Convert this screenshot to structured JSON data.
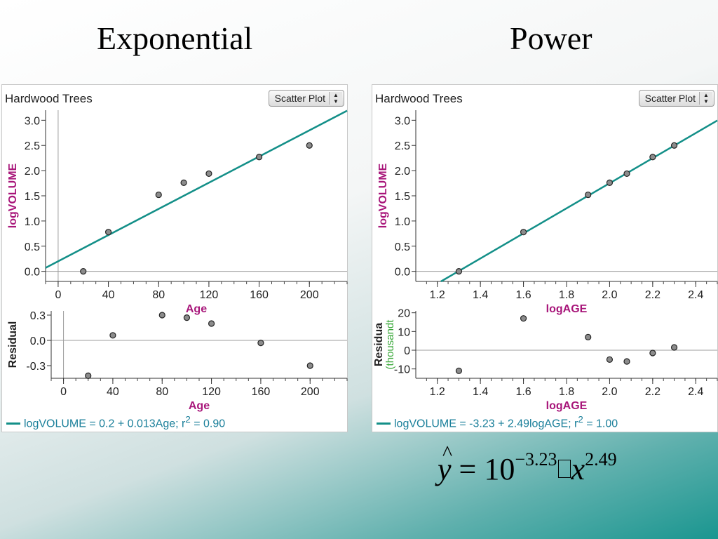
{
  "slide": {
    "title_left": "Exponential",
    "title_right": "Power"
  },
  "panels": [
    {
      "title": "Hardwood Trees",
      "plot_type": "Scatter Plot",
      "legend": {
        "prefix": "logVOLUME = 0.2 + 0.013Age; r",
        "sup": "2",
        "suffix": " = 0.90"
      },
      "main": {
        "xlim": [
          -10,
          230
        ],
        "ylim": [
          -0.2,
          3.2
        ],
        "xticks": [
          0,
          40,
          80,
          120,
          160,
          200
        ],
        "yticks": [
          "0.0",
          "0.5",
          "1.0",
          "1.5",
          "2.0",
          "2.5",
          "3.0"
        ]
      },
      "residual": {
        "xlim": [
          -10,
          230
        ],
        "ylim": [
          -0.45,
          0.35
        ],
        "xticks": [
          0,
          40,
          80,
          120,
          160,
          200
        ],
        "yticks": [
          "0.3",
          "0.0",
          "-0.3"
        ]
      }
    },
    {
      "title": "Hardwood Trees",
      "plot_type": "Scatter Plot",
      "legend": {
        "prefix": "logVOLUME = -3.23 + 2.49logAGE; r",
        "sup": "2",
        "suffix": " = 1.00"
      },
      "main": {
        "xlim": [
          1.1,
          2.5
        ],
        "ylim": [
          -0.2,
          3.2
        ],
        "xticks": [
          "1.2",
          "1.4",
          "1.6",
          "1.8",
          "2.0",
          "2.2",
          "2.4"
        ],
        "yticks": [
          "0.0",
          "0.5",
          "1.0",
          "1.5",
          "2.0",
          "2.5",
          "3.0"
        ]
      },
      "residual": {
        "xlim": [
          1.1,
          2.5
        ],
        "ylim": [
          -15,
          21
        ],
        "xticks": [
          "1.2",
          "1.4",
          "1.6",
          "1.8",
          "2.0",
          "2.2",
          "2.4"
        ],
        "yticks": [
          "20",
          "10",
          "0",
          "-10"
        ]
      }
    }
  ],
  "formula": {
    "lhs": "y",
    "hat": "^",
    "equals": "=",
    "base": "10",
    "exponent": "−3.23",
    "var": "x",
    "var_exp": "2.49"
  },
  "colors": {
    "points": "#8c8c8c",
    "line": "#138f88",
    "axis_label": "#a8167a",
    "legend_text": "#1a7f9a",
    "residual_sub": "#3aa83a"
  },
  "chart_data": [
    {
      "type": "scatter",
      "title": "Hardwood Trees",
      "xlabel": "Age",
      "ylabel": "logVOLUME",
      "x": [
        20,
        40,
        80,
        100,
        120,
        160,
        200
      ],
      "y": [
        0.0,
        0.78,
        1.52,
        1.76,
        1.94,
        2.27,
        2.5
      ],
      "fit": {
        "intercept": 0.2,
        "slope": 0.013,
        "r2": 0.9
      },
      "xlim": [
        -10,
        230
      ],
      "ylim": [
        -0.2,
        3.2
      ]
    },
    {
      "type": "scatter",
      "xlabel": "Age",
      "ylabel": "Residual",
      "x": [
        20,
        40,
        80,
        100,
        120,
        160,
        200
      ],
      "y": [
        -0.42,
        0.06,
        0.3,
        0.27,
        0.2,
        -0.03,
        -0.3
      ],
      "xlim": [
        -10,
        230
      ],
      "ylim": [
        -0.45,
        0.35
      ]
    },
    {
      "type": "scatter",
      "title": "Hardwood Trees",
      "xlabel": "logAGE",
      "ylabel": "logVOLUME",
      "x": [
        1.3,
        1.6,
        1.9,
        2.0,
        2.08,
        2.2,
        2.3
      ],
      "y": [
        0.0,
        0.78,
        1.52,
        1.76,
        1.94,
        2.27,
        2.5
      ],
      "fit": {
        "intercept": -3.23,
        "slope": 2.49,
        "r2": 1.0
      },
      "xlim": [
        1.1,
        2.5
      ],
      "ylim": [
        -0.2,
        3.2
      ]
    },
    {
      "type": "scatter",
      "xlabel": "logAGE",
      "ylabel": "Residua",
      "ylabel_sub": "(thousandt",
      "x": [
        1.3,
        1.6,
        1.9,
        2.0,
        2.08,
        2.2,
        2.3
      ],
      "y": [
        -11,
        17,
        7,
        -5,
        -6,
        -1.5,
        1.5
      ],
      "xlim": [
        1.1,
        2.5
      ],
      "ylim": [
        -15,
        21
      ]
    }
  ]
}
